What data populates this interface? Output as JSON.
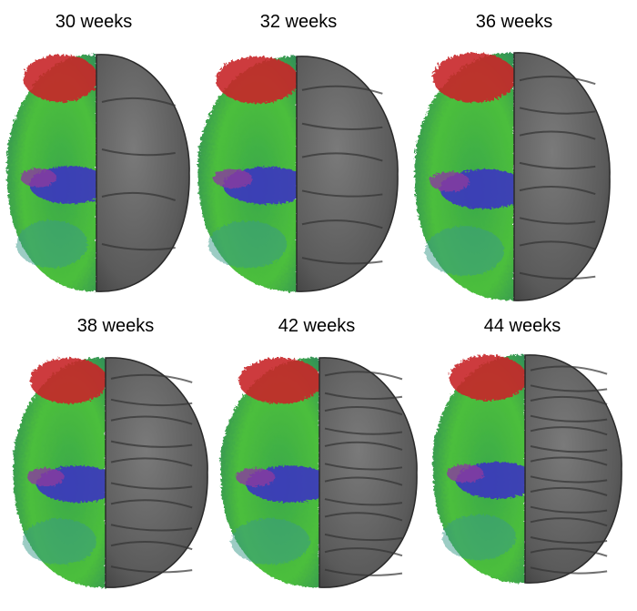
{
  "panels": [
    {
      "label": "30 weeks"
    },
    {
      "label": "32 weeks"
    },
    {
      "label": "36 weeks"
    },
    {
      "label": "38 weeks"
    },
    {
      "label": "42 weeks"
    },
    {
      "label": "44 weeks"
    }
  ]
}
